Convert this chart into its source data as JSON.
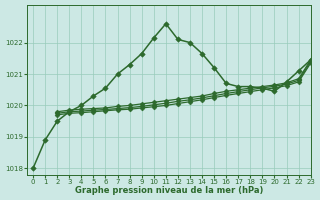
{
  "title": "Graphe pression niveau de la mer (hPa)",
  "bg_color": "#cce8e4",
  "grid_color": "#99ccbb",
  "line_color": "#2d6a2d",
  "marker_color": "#2d6a2d",
  "xlim": [
    -0.5,
    23
  ],
  "ylim": [
    1017.8,
    1023.2
  ],
  "xticks": [
    0,
    1,
    2,
    3,
    4,
    5,
    6,
    7,
    8,
    9,
    10,
    11,
    12,
    13,
    14,
    15,
    16,
    17,
    18,
    19,
    20,
    21,
    22,
    23
  ],
  "yticks": [
    1018,
    1019,
    1020,
    1021,
    1022
  ],
  "series": [
    {
      "x": [
        0,
        1,
        2,
        3,
        4,
        5,
        6,
        7,
        8,
        9,
        10,
        11,
        12,
        13,
        14,
        15,
        16,
        17,
        18,
        19,
        20,
        21,
        22,
        23
      ],
      "y": [
        1018.0,
        1018.9,
        1019.5,
        1019.8,
        1020.0,
        1020.3,
        1020.55,
        1021.0,
        1021.3,
        1021.65,
        1022.15,
        1022.6,
        1022.1,
        1022.0,
        1021.65,
        1021.2,
        1020.7,
        1020.6,
        1020.6,
        1020.55,
        1020.45,
        1020.75,
        1021.1,
        1021.45
      ],
      "marker": "D",
      "markersize": 2.8,
      "linewidth": 1.1
    },
    {
      "x": [
        2,
        3,
        4,
        5,
        6,
        7,
        8,
        9,
        10,
        11,
        12,
        13,
        14,
        15,
        16,
        17,
        18,
        19,
        20,
        21,
        22,
        23
      ],
      "y": [
        1019.8,
        1019.85,
        1019.88,
        1019.9,
        1019.92,
        1019.97,
        1020.0,
        1020.05,
        1020.1,
        1020.15,
        1020.2,
        1020.25,
        1020.3,
        1020.38,
        1020.45,
        1020.5,
        1020.55,
        1020.6,
        1020.65,
        1020.72,
        1020.85,
        1021.45
      ],
      "marker": "D",
      "markersize": 2.5,
      "linewidth": 0.9
    },
    {
      "x": [
        2,
        3,
        4,
        5,
        6,
        7,
        8,
        9,
        10,
        11,
        12,
        13,
        14,
        15,
        16,
        17,
        18,
        19,
        20,
        21,
        22,
        23
      ],
      "y": [
        1019.75,
        1019.8,
        1019.82,
        1019.85,
        1019.87,
        1019.9,
        1019.93,
        1019.97,
        1020.02,
        1020.07,
        1020.13,
        1020.18,
        1020.24,
        1020.31,
        1020.38,
        1020.44,
        1020.5,
        1020.56,
        1020.61,
        1020.68,
        1020.8,
        1021.4
      ],
      "marker": "D",
      "markersize": 2.5,
      "linewidth": 0.9
    },
    {
      "x": [
        2,
        3,
        4,
        5,
        6,
        7,
        8,
        9,
        10,
        11,
        12,
        13,
        14,
        15,
        16,
        17,
        18,
        19,
        20,
        21,
        22,
        23
      ],
      "y": [
        1019.7,
        1019.75,
        1019.77,
        1019.8,
        1019.83,
        1019.86,
        1019.88,
        1019.92,
        1019.96,
        1020.0,
        1020.06,
        1020.12,
        1020.18,
        1020.25,
        1020.32,
        1020.38,
        1020.44,
        1020.5,
        1020.56,
        1020.63,
        1020.75,
        1021.35
      ],
      "marker": "D",
      "markersize": 2.5,
      "linewidth": 0.9
    }
  ]
}
